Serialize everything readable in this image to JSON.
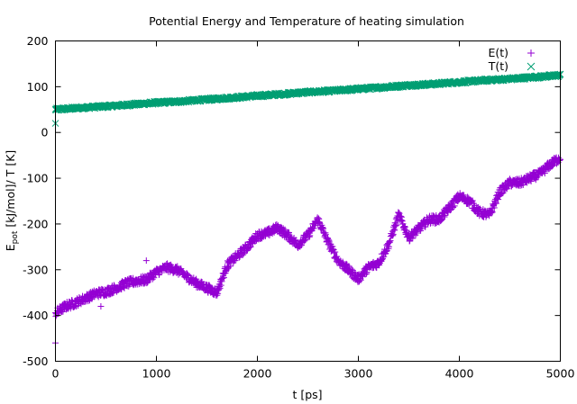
{
  "chart_data": {
    "type": "scatter",
    "title": "Potential Energy and Temperature of heating simulation",
    "xlabel": "t [ps]",
    "ylabel": {
      "prefix": "E",
      "subscript": "pot",
      "suffix": " [kJ/mol]/ T [K]"
    },
    "xlim": [
      0,
      5000
    ],
    "ylim": [
      -500,
      200
    ],
    "xticks": [
      {
        "value": 0,
        "label": "0"
      },
      {
        "value": 1000,
        "label": "1000"
      },
      {
        "value": 2000,
        "label": "2000"
      },
      {
        "value": 3000,
        "label": "3000"
      },
      {
        "value": 4000,
        "label": "4000"
      },
      {
        "value": 5000,
        "label": "5000"
      }
    ],
    "yticks": [
      {
        "value": 200,
        "label": "200"
      },
      {
        "value": 100,
        "label": "100"
      },
      {
        "value": 0,
        "label": "0"
      },
      {
        "value": -100,
        "label": "-100"
      },
      {
        "value": -200,
        "label": "-200"
      },
      {
        "value": -300,
        "label": "-300"
      },
      {
        "value": -400,
        "label": "-400"
      },
      {
        "value": -500,
        "label": "-500"
      }
    ],
    "grid": false,
    "legend_position": "top-right",
    "series": [
      {
        "name": "E(t)",
        "marker": "plus",
        "color": "#9400d3",
        "x": [
          0,
          100,
          200,
          300,
          400,
          500,
          600,
          700,
          800,
          900,
          1000,
          1100,
          1200,
          1300,
          1400,
          1500,
          1600,
          1700,
          1800,
          1900,
          2000,
          2100,
          2200,
          2300,
          2400,
          2500,
          2600,
          2700,
          2800,
          2900,
          3000,
          3100,
          3200,
          3300,
          3400,
          3500,
          3600,
          3700,
          3800,
          3900,
          4000,
          4100,
          4200,
          4300,
          4400,
          4500,
          4600,
          4700,
          4800,
          4900,
          5000
        ],
        "y": [
          -395,
          -380,
          -372,
          -362,
          -352,
          -348,
          -340,
          -330,
          -325,
          -322,
          -305,
          -295,
          -300,
          -315,
          -330,
          -340,
          -350,
          -290,
          -270,
          -250,
          -225,
          -220,
          -208,
          -225,
          -245,
          -225,
          -190,
          -240,
          -280,
          -300,
          -320,
          -295,
          -285,
          -245,
          -180,
          -230,
          -210,
          -190,
          -190,
          -165,
          -140,
          -150,
          -175,
          -180,
          -130,
          -110,
          -110,
          -100,
          -90,
          -70,
          -55
        ],
        "outliers": [
          {
            "x": 0,
            "y": -460
          },
          {
            "x": 900,
            "y": -280
          },
          {
            "x": 450,
            "y": -380
          }
        ]
      },
      {
        "name": "T(t)",
        "marker": "cross",
        "color": "#009e73",
        "x": [
          0,
          250,
          500,
          750,
          1000,
          1250,
          1500,
          1750,
          2000,
          2250,
          2500,
          2750,
          3000,
          3250,
          3500,
          3750,
          4000,
          4250,
          4500,
          4750,
          5000
        ],
        "y": [
          50,
          54,
          57,
          61,
          65,
          68,
          72,
          76,
          80,
          84,
          88,
          91,
          95,
          99,
          103,
          106,
          110,
          114,
          117,
          121,
          125
        ],
        "outliers": [
          {
            "x": 0,
            "y": 20
          }
        ]
      }
    ]
  }
}
